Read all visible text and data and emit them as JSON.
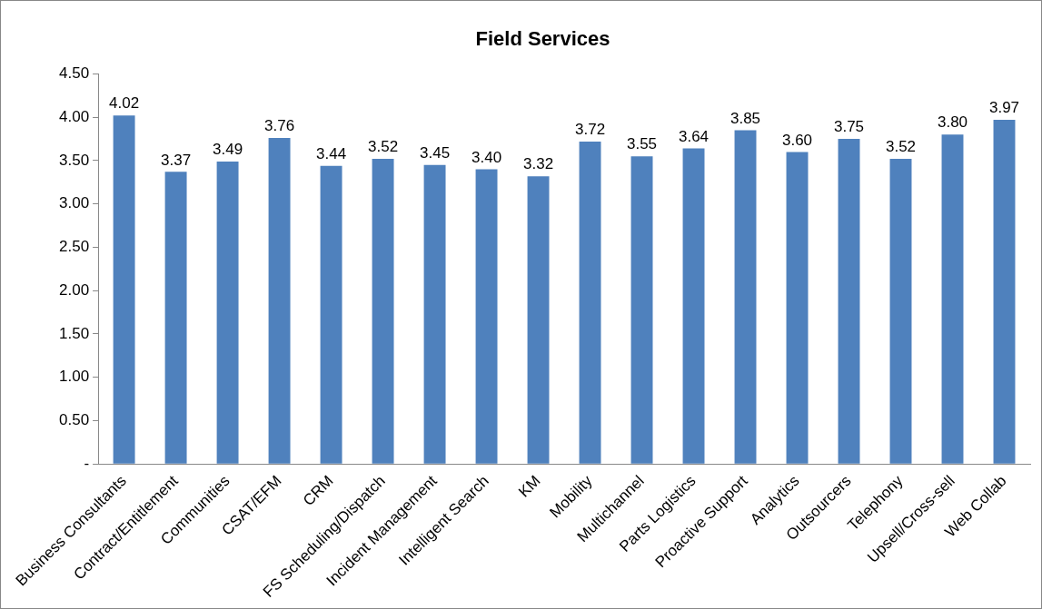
{
  "chart_data": {
    "type": "bar",
    "title": "Field Services",
    "categories": [
      "Business Consultants",
      "Contract/Entitlement",
      "Communities",
      "CSAT/EFM",
      "CRM",
      "FS Scheduling/Dispatch",
      "Incident Management",
      "Intelligent Search",
      "KM",
      "Mobility",
      "Multichannel",
      "Parts Logistics",
      "Proactive Support",
      "Analytics",
      "Outsourcers",
      "Telephony",
      "Upsell/Cross-sell",
      "Web Collab"
    ],
    "values": [
      4.02,
      3.37,
      3.49,
      3.76,
      3.44,
      3.52,
      3.45,
      3.4,
      3.32,
      3.72,
      3.55,
      3.64,
      3.85,
      3.6,
      3.75,
      3.52,
      3.8,
      3.97
    ],
    "value_labels": [
      "4.02",
      "3.37",
      "3.49",
      "3.76",
      "3.44",
      "3.52",
      "3.45",
      "3.40",
      "3.32",
      "3.72",
      "3.55",
      "3.64",
      "3.85",
      "3.60",
      "3.75",
      "3.52",
      "3.80",
      "3.97"
    ],
    "color": "#4f81bd",
    "ylim": [
      0,
      4.5
    ],
    "yticks": [
      {
        "value": 0,
        "label": "-"
      },
      {
        "value": 0.5,
        "label": "0.50"
      },
      {
        "value": 1,
        "label": "1.00"
      },
      {
        "value": 1.5,
        "label": "1.50"
      },
      {
        "value": 2,
        "label": "2.00"
      },
      {
        "value": 2.5,
        "label": "2.50"
      },
      {
        "value": 3,
        "label": "3.00"
      },
      {
        "value": 3.5,
        "label": "3.50"
      },
      {
        "value": 4,
        "label": "4.00"
      },
      {
        "value": 4.5,
        "label": "4.50"
      }
    ],
    "grid": false,
    "legend": false
  }
}
